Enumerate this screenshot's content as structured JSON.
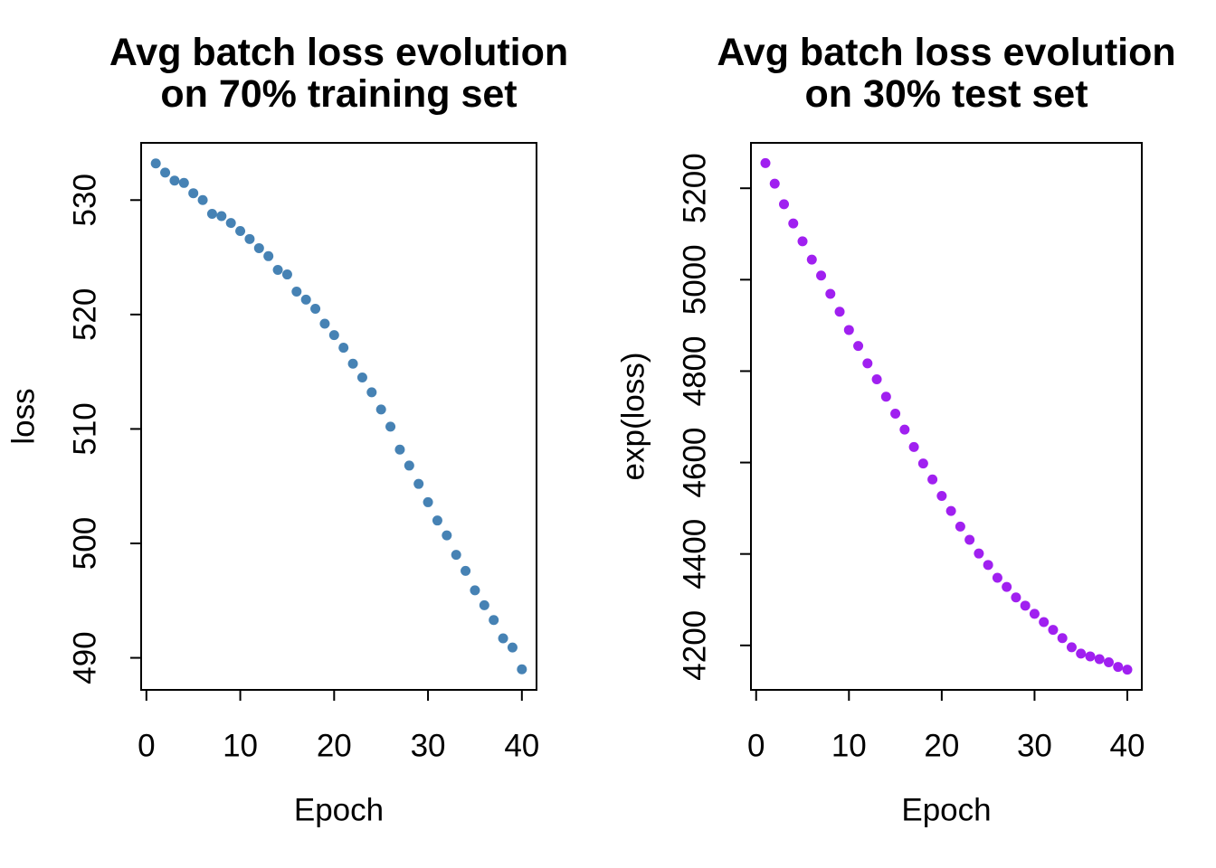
{
  "page": {
    "background": "#ffffff",
    "axis_color": "#000000",
    "text_color": "#000000"
  },
  "chart_data": [
    {
      "type": "scatter",
      "title_lines": [
        "Avg batch loss evolution",
        "on 70% training set"
      ],
      "xlabel": "Epoch",
      "ylabel": "loss",
      "point_color": "#4682B4",
      "x_start": 1,
      "x_step": 1,
      "x_ticks": [
        0,
        10,
        20,
        30,
        40
      ],
      "y_ticks": [
        490,
        500,
        510,
        520,
        530
      ],
      "xlim": [
        -0.56,
        41.56
      ],
      "ylim": [
        487.2,
        535.0
      ],
      "grid": false,
      "values": [
        533.2,
        532.4,
        531.7,
        531.5,
        530.6,
        530.0,
        528.8,
        528.6,
        528.0,
        527.3,
        526.6,
        525.8,
        525.1,
        523.9,
        523.5,
        522.0,
        521.3,
        520.5,
        519.2,
        518.2,
        517.1,
        515.7,
        514.5,
        513.2,
        511.7,
        510.2,
        508.2,
        506.8,
        505.2,
        503.6,
        502.0,
        500.7,
        499.0,
        497.6,
        495.9,
        494.6,
        493.3,
        491.7,
        490.9,
        489.0
      ]
    },
    {
      "type": "scatter",
      "title_lines": [
        "Avg batch loss evolution",
        "on 30% test set"
      ],
      "xlabel": "Epoch",
      "ylabel": "exp(loss)",
      "point_color": "#A020F0",
      "x_start": 1,
      "x_step": 1,
      "x_ticks": [
        0,
        10,
        20,
        30,
        40
      ],
      "y_ticks": [
        4200,
        4400,
        4600,
        4800,
        5000,
        5200
      ],
      "xlim": [
        -0.56,
        41.56
      ],
      "ylim": [
        4102.7,
        5299.3
      ],
      "grid": false,
      "values": [
        5255,
        5210,
        5165,
        5123,
        5084,
        5044,
        5009,
        4969,
        4930,
        4890,
        4855,
        4817,
        4782,
        4744,
        4707,
        4672,
        4634,
        4598,
        4563,
        4527,
        4494,
        4460,
        4431,
        4401,
        4376,
        4348,
        4328,
        4305,
        4287,
        4269,
        4251,
        4234,
        4216,
        4196,
        4182,
        4176,
        4170,
        4163,
        4153,
        4147
      ]
    }
  ]
}
